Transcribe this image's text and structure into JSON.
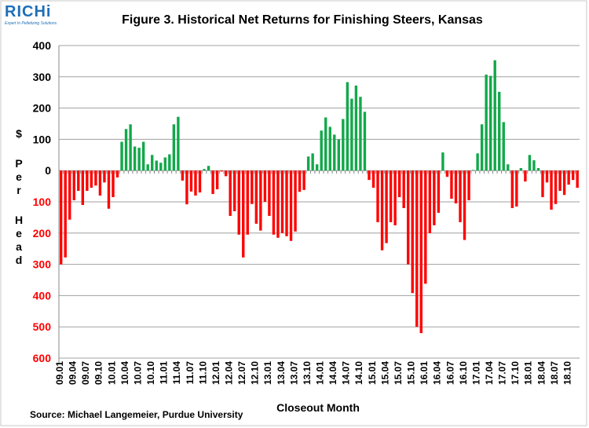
{
  "logo": {
    "name": "RICHi",
    "tagline": "Expert In Pelletizing Solutions"
  },
  "chart_data": {
    "type": "bar",
    "title": "Figure  3.  Historical Net Returns for Finishing Steers, Kansas",
    "xlabel": "Closeout Month",
    "ylabel": "$ Per Head",
    "ylim": [
      -600,
      400
    ],
    "yticks": [
      400,
      300,
      200,
      100,
      0,
      -100,
      -200,
      -300,
      -400,
      -500,
      -600
    ],
    "ytick_labels": [
      "400",
      "300",
      "200",
      "100",
      "0",
      "100",
      "200",
      "300",
      "400",
      "500",
      "600"
    ],
    "xtick_labels": [
      "09.01",
      "09.04",
      "09.07",
      "09.10",
      "10.01",
      "10.04",
      "10.07",
      "10.10",
      "11.01",
      "11.04",
      "11.07",
      "11.10",
      "12.01",
      "12.04",
      "12.07",
      "12.10",
      "13.01",
      "13.04",
      "13.07",
      "13.10",
      "14.01",
      "14.04",
      "14.07",
      "14.10",
      "15.01",
      "15.04",
      "15.07",
      "15.10",
      "16.01",
      "16.04",
      "16.07",
      "16.10",
      "17.01",
      "17.04",
      "17.07",
      "17.10",
      "18.01",
      "18.04",
      "18.07",
      "18.10"
    ],
    "start_month": "09.01",
    "values": [
      -300,
      -278,
      -157,
      -95,
      -65,
      -110,
      -65,
      -55,
      -48,
      -80,
      -38,
      -122,
      -85,
      -22,
      92,
      133,
      148,
      77,
      73,
      92,
      20,
      50,
      32,
      25,
      42,
      52,
      148,
      172,
      -32,
      -108,
      -67,
      -80,
      -70,
      5,
      15,
      -75,
      -60,
      -3,
      -18,
      -145,
      -130,
      -205,
      -278,
      -205,
      -107,
      -170,
      -192,
      -100,
      -145,
      -205,
      -215,
      -200,
      -210,
      -225,
      -195,
      -68,
      -62,
      45,
      55,
      20,
      128,
      170,
      140,
      115,
      100,
      165,
      283,
      230,
      272,
      236,
      188,
      -30,
      -55,
      -165,
      -255,
      -232,
      -165,
      -175,
      -85,
      -120,
      -300,
      -392,
      -500,
      -520,
      -362,
      -200,
      -175,
      -135,
      58,
      -20,
      -90,
      -105,
      -165,
      -222,
      -95,
      2,
      55,
      148,
      307,
      303,
      353,
      252,
      155,
      20,
      -120,
      -115,
      8,
      -35,
      50,
      33,
      8,
      -85,
      -38,
      -125,
      -107,
      -65,
      -78,
      -45,
      -30,
      -55
    ],
    "colors": {
      "positive": "#12a84a",
      "negative": "#ff0000",
      "axis_positive_labels": "#000000",
      "axis_negative_labels": "#ff0000"
    },
    "grid": true,
    "source": "Source:  Michael Langemeier, Purdue University"
  }
}
